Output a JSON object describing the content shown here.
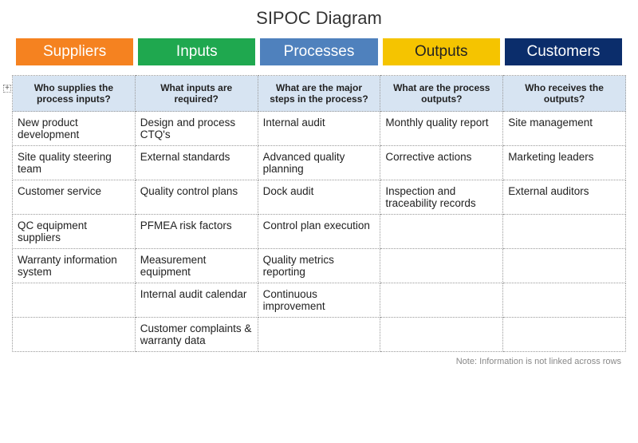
{
  "title": "SIPOC Diagram",
  "headers": [
    {
      "label": "Suppliers",
      "bg": "#f58220",
      "fg": "#ffffff"
    },
    {
      "label": "Inputs",
      "bg": "#1fa84f",
      "fg": "#ffffff"
    },
    {
      "label": "Processes",
      "bg": "#4f81bd",
      "fg": "#ffffff"
    },
    {
      "label": "Outputs",
      "bg": "#f5c400",
      "fg": "#222222"
    },
    {
      "label": "Customers",
      "bg": "#0b2d6b",
      "fg": "#ffffff"
    }
  ],
  "table": {
    "header_bg": "#d7e4f2",
    "columns": [
      "Who supplies the process inputs?",
      "What inputs are required?",
      "What are the major steps in the process?",
      "What are the process outputs?",
      "Who receives the outputs?"
    ],
    "rows": [
      [
        "New product development",
        "Design and process CTQ's",
        "Internal audit",
        "Monthly quality report",
        "Site management"
      ],
      [
        "Site quality steering team",
        "External standards",
        "Advanced quality planning",
        "Corrective actions",
        "Marketing leaders"
      ],
      [
        "Customer service",
        "Quality control plans",
        "Dock audit",
        "Inspection and traceability records",
        "External auditors"
      ],
      [
        "QC equipment suppliers",
        "PFMEA risk factors",
        "Control plan execution",
        "",
        ""
      ],
      [
        "Warranty information system",
        "Measurement equipment",
        "Quality metrics reporting",
        "",
        ""
      ],
      [
        "",
        "Internal audit calendar",
        "Continuous improvement",
        "",
        ""
      ],
      [
        "",
        "Customer complaints & warranty data",
        "",
        "",
        ""
      ]
    ]
  },
  "footnote": "Note:  Information is not linked across rows",
  "plus_symbol": "+"
}
